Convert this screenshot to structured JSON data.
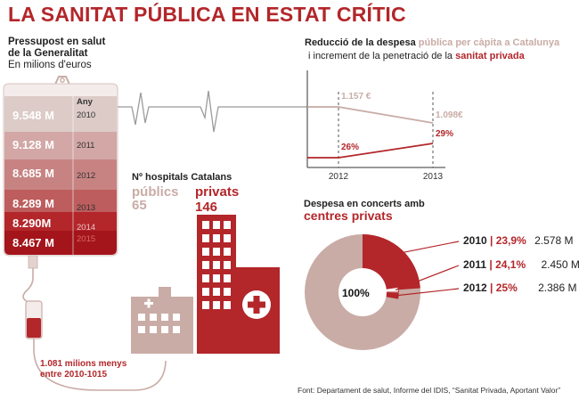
{
  "title": "LA SANITAT PÚBLICA EN ESTAT CRÍTIC",
  "colors": {
    "red": "#b3262a",
    "pink": "#c9aca6",
    "light_pink": "#e3d3d0"
  },
  "budget": {
    "heading_line1": "Pressupost  en salut",
    "heading_line2": "de la Generalitat",
    "unit": "En milions d'euros",
    "year_header": "Any",
    "rows": [
      {
        "value": "9.548 M",
        "year": "2010",
        "num": 9548
      },
      {
        "value": "9.128 M",
        "year": "2011",
        "num": 9128
      },
      {
        "value": "8.685 M",
        "year": "2012",
        "num": 8685
      },
      {
        "value": "8.289 M",
        "year": "2013",
        "num": 8289
      },
      {
        "value": "8.290M",
        "year": "2014",
        "num": 8290
      },
      {
        "value": "8.467 M",
        "year": "2015",
        "num": 8467
      }
    ],
    "loss_line1": "1.081 milions menys",
    "loss_line2": "entre 2010-1015"
  },
  "hospitals": {
    "heading": "Nº hospitals Catalans",
    "public_label": "públics",
    "public_count": "65",
    "private_label": "privats",
    "private_count": "146"
  },
  "spending_chart": {
    "title_part1": "Reducció de la despesa",
    "title_part2": "pública per càpita a Catalunya",
    "title_part3": "i increment de la penetració de la",
    "title_part4": "sanitat privada",
    "categories": [
      "2012",
      "2013"
    ],
    "public_labels": [
      "1.157 €",
      "1.098€"
    ],
    "private_labels": [
      "26%",
      "29%"
    ]
  },
  "chart_data": [
    {
      "type": "line",
      "title": "Reducció de la despesa pública per càpita a Catalunya i increment de la penetració de la sanitat privada",
      "categories": [
        "2012",
        "2013"
      ],
      "series": [
        {
          "name": "pública per càpita a Catalunya",
          "values": [
            1157,
            1098
          ]
        },
        {
          "name": "sanitat privada",
          "values": [
            26,
            29
          ]
        }
      ]
    },
    {
      "type": "pie",
      "title": "Despesa en concerts amb centres privats",
      "center_label": "100%",
      "series": [
        {
          "name": "2010",
          "values": [
            23.9
          ]
        },
        {
          "name": "2011",
          "values": [
            24.1
          ]
        },
        {
          "name": "2012",
          "values": [
            25
          ]
        }
      ]
    }
  ],
  "concerts": {
    "title_line1": "Despesa en concerts amb",
    "title_line2": "centres privats",
    "center": "100%",
    "rows": [
      {
        "year": "2010",
        "pct": "23,9%",
        "amount": "2.578 M"
      },
      {
        "year": "2011",
        "pct": "24,1%",
        "amount": "2.450 M"
      },
      {
        "year": "2012",
        "pct": "25%",
        "amount": "2.386 M"
      }
    ]
  },
  "source": "Font: Departament de salut, Informe del IDIS, “Sanitat Privada, Aportant Valor”"
}
